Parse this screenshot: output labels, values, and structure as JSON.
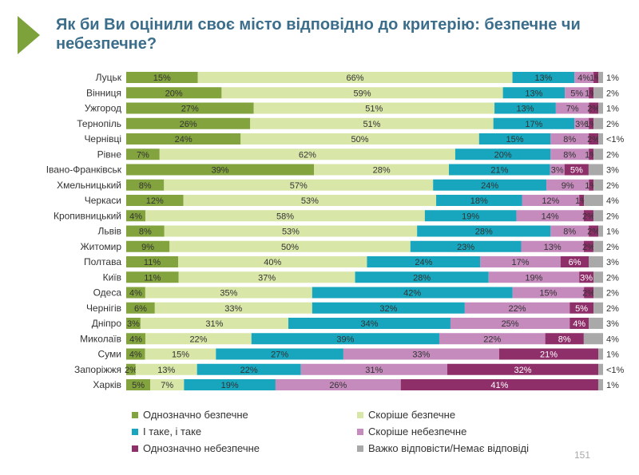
{
  "slide": {
    "title": "Як би Ви оцінили своє місто відповідно до критерію: безпечне чи небезпечне?",
    "page_number": "151"
  },
  "colors": {
    "title": "#3c6e8c",
    "accent_arrow": "#7da23b"
  },
  "chart_data": {
    "type": "bar",
    "orientation": "horizontal",
    "stacked": true,
    "title": "",
    "xlim": [
      0,
      100
    ],
    "legend_position": "bottom",
    "categories": [
      "Луцьк",
      "Вінниця",
      "Ужгород",
      "Тернопіль",
      "Чернівці",
      "Рівне",
      "Івано-Франківськ",
      "Хмельницький",
      "Черкаси",
      "Кропивницький",
      "Львів",
      "Житомир",
      "Полтава",
      "Київ",
      "Одеса",
      "Чернігів",
      "Дніпро",
      "Миколаїв",
      "Суми",
      "Запоріжжя",
      "Харків"
    ],
    "series": [
      {
        "name": "Однозначно безпечне",
        "color": "#82a33d",
        "values": [
          15,
          20,
          27,
          26,
          24,
          7,
          39,
          8,
          12,
          4,
          8,
          9,
          11,
          11,
          4,
          6,
          3,
          4,
          4,
          2,
          5
        ],
        "labels": [
          "15%",
          "20%",
          "27%",
          "26%",
          "24%",
          "7%",
          "39%",
          "8%",
          "12%",
          "4%",
          "8%",
          "9%",
          "11%",
          "11%",
          "4%",
          "6%",
          "3%",
          "4%",
          "4%",
          "2%",
          "5%"
        ]
      },
      {
        "name": "Скоріше безпечне",
        "color": "#d8e6a8",
        "values": [
          66,
          59,
          51,
          51,
          50,
          62,
          28,
          57,
          53,
          58,
          53,
          50,
          40,
          37,
          35,
          33,
          31,
          22,
          15,
          13,
          7
        ],
        "labels": [
          "66%",
          "59%",
          "51%",
          "51%",
          "50%",
          "62%",
          "28%",
          "57%",
          "53%",
          "58%",
          "53%",
          "50%",
          "40%",
          "37%",
          "35%",
          "33%",
          "31%",
          "22%",
          "15%",
          "13%",
          "7%"
        ]
      },
      {
        "name": "І таке, і таке",
        "color": "#17a6be",
        "values": [
          13,
          13,
          13,
          17,
          15,
          20,
          21,
          24,
          18,
          19,
          28,
          23,
          24,
          28,
          42,
          32,
          34,
          39,
          27,
          22,
          19
        ],
        "labels": [
          "13%",
          "13%",
          "13%",
          "17%",
          "15%",
          "20%",
          "21%",
          "24%",
          "18%",
          "19%",
          "28%",
          "23%",
          "24%",
          "28%",
          "42%",
          "32%",
          "34%",
          "39%",
          "27%",
          "22%",
          "19%"
        ]
      },
      {
        "name": "Скоріше небезпечне",
        "color": "#c58bbd",
        "values": [
          4,
          5,
          7,
          3,
          8,
          8,
          3,
          9,
          12,
          14,
          8,
          13,
          17,
          19,
          15,
          22,
          25,
          22,
          33,
          31,
          26
        ],
        "labels": [
          "4%",
          "5%",
          "7%",
          "3%",
          "8%",
          "8%",
          "3%",
          "9%",
          "12%",
          "14%",
          "8%",
          "13%",
          "17%",
          "19%",
          "15%",
          "22%",
          "25%",
          "22%",
          "33%",
          "31%",
          "26%"
        ]
      },
      {
        "name": "Однозначно небезпечне",
        "color": "#8e2f6a",
        "values": [
          1,
          1,
          2,
          1,
          2,
          1,
          5,
          1,
          1,
          2,
          2,
          2,
          6,
          3,
          2,
          5,
          4,
          8,
          21,
          32,
          41
        ],
        "labels": [
          "1%",
          "1%",
          "2%",
          "1%",
          "2%",
          "1%",
          "5%",
          "1%",
          "1%",
          "2%",
          "2%",
          "2%",
          "6%",
          "3%",
          "2%",
          "5%",
          "4%",
          "8%",
          "21%",
          "32%",
          "41%"
        ]
      },
      {
        "name": "Важко відповісти/Немає відповіді",
        "color": "#a9a9a9",
        "values": [
          1,
          2,
          1,
          2,
          1,
          2,
          3,
          2,
          4,
          2,
          1,
          2,
          3,
          2,
          2,
          2,
          3,
          4,
          1,
          1,
          1
        ],
        "labels": [
          "1%",
          "2%",
          "1%",
          "2%",
          "<1%",
          "2%",
          "3%",
          "2%",
          "4%",
          "2%",
          "1%",
          "2%",
          "3%",
          "2%",
          "2%",
          "2%",
          "3%",
          "4%",
          "1%",
          "<1%",
          "1%"
        ]
      }
    ]
  }
}
